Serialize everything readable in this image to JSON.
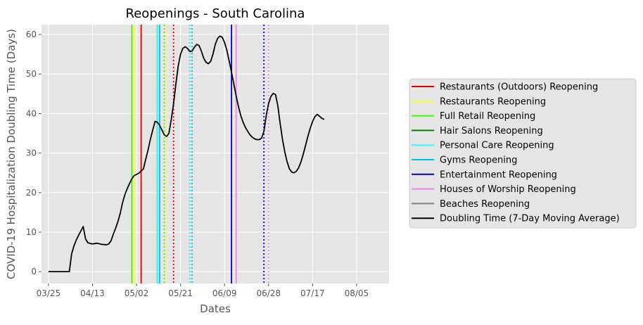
{
  "chart_data": {
    "type": "line",
    "title": "Reopenings - South Carolina",
    "xlabel": "Dates",
    "ylabel": "COVID-19 Hospitalization Doubling Time (Days)",
    "x_ticks": [
      "03/25",
      "04/13",
      "05/02",
      "05/21",
      "06/09",
      "06/28",
      "07/17",
      "08/05"
    ],
    "y_ticks": [
      0,
      10,
      20,
      30,
      40,
      50,
      60
    ],
    "xlim": [
      "03/22",
      "08/19"
    ],
    "ylim": [
      -3,
      62.5
    ],
    "grid": true,
    "legend_position": "right-outside",
    "series": [
      {
        "name": "Doubling Time (7-Day Moving Average)",
        "color": "#000000",
        "points": [
          [
            "03/25",
            0
          ],
          [
            "03/27",
            0
          ],
          [
            "03/29",
            0
          ],
          [
            "03/31",
            0
          ],
          [
            "04/02",
            0
          ],
          [
            "04/03",
            0
          ],
          [
            "04/04",
            4.5
          ],
          [
            "04/05",
            6.5
          ],
          [
            "04/06",
            8
          ],
          [
            "04/07",
            9.2
          ],
          [
            "04/08",
            10.3
          ],
          [
            "04/09",
            11.4
          ],
          [
            "04/10",
            8.3
          ],
          [
            "04/11",
            7.3
          ],
          [
            "04/13",
            7
          ],
          [
            "04/15",
            7.2
          ],
          [
            "04/17",
            6.9
          ],
          [
            "04/19",
            6.8
          ],
          [
            "04/20",
            7
          ],
          [
            "04/21",
            7.8
          ],
          [
            "04/22",
            9.5
          ],
          [
            "04/23",
            11
          ],
          [
            "04/24",
            12.7
          ],
          [
            "04/25",
            14.8
          ],
          [
            "04/26",
            17.5
          ],
          [
            "04/27",
            19.5
          ],
          [
            "04/28",
            21
          ],
          [
            "04/29",
            22.3
          ],
          [
            "04/30",
            23.5
          ],
          [
            "05/01",
            24.3
          ],
          [
            "05/03",
            24.9
          ],
          [
            "05/05",
            26
          ],
          [
            "05/06",
            28.5
          ],
          [
            "05/07",
            30.8
          ],
          [
            "05/08",
            33.5
          ],
          [
            "05/09",
            35.8
          ],
          [
            "05/10",
            38
          ],
          [
            "05/11",
            37.8
          ],
          [
            "05/12",
            37
          ],
          [
            "05/13",
            35.8
          ],
          [
            "05/14",
            34.6
          ],
          [
            "05/15",
            34.2
          ],
          [
            "05/16",
            35
          ],
          [
            "05/17",
            38.5
          ],
          [
            "05/18",
            42.5
          ],
          [
            "05/19",
            47.5
          ],
          [
            "05/20",
            52
          ],
          [
            "05/21",
            55
          ],
          [
            "05/22",
            56.5
          ],
          [
            "05/23",
            56.9
          ],
          [
            "05/24",
            56.5
          ],
          [
            "05/25",
            55.7
          ],
          [
            "05/26",
            55.8
          ],
          [
            "05/27",
            56.8
          ],
          [
            "05/28",
            57.5
          ],
          [
            "05/29",
            57.2
          ],
          [
            "05/30",
            55.8
          ],
          [
            "05/31",
            54
          ],
          [
            "06/01",
            53
          ],
          [
            "06/02",
            52.6
          ],
          [
            "06/03",
            53.2
          ],
          [
            "06/04",
            55
          ],
          [
            "06/05",
            57.5
          ],
          [
            "06/06",
            59
          ],
          [
            "06/07",
            59.6
          ],
          [
            "06/08",
            59.3
          ],
          [
            "06/09",
            58
          ],
          [
            "06/10",
            56
          ],
          [
            "06/11",
            53.3
          ],
          [
            "06/12",
            50.5
          ],
          [
            "06/13",
            47.5
          ],
          [
            "06/14",
            44.5
          ],
          [
            "06/15",
            41.8
          ],
          [
            "06/16",
            39.5
          ],
          [
            "06/17",
            37.8
          ],
          [
            "06/18",
            36.5
          ],
          [
            "06/19",
            35.5
          ],
          [
            "06/20",
            34.6
          ],
          [
            "06/21",
            34
          ],
          [
            "06/22",
            33.6
          ],
          [
            "06/23",
            33.4
          ],
          [
            "06/24",
            33.4
          ],
          [
            "06/25",
            33.8
          ],
          [
            "06/26",
            35.5
          ],
          [
            "06/27",
            39.5
          ],
          [
            "06/28",
            42.5
          ],
          [
            "06/29",
            44.3
          ],
          [
            "06/30",
            45.1
          ],
          [
            "07/01",
            44.8
          ],
          [
            "07/02",
            42
          ],
          [
            "07/03",
            37.5
          ],
          [
            "07/04",
            33.5
          ],
          [
            "07/05",
            30.3
          ],
          [
            "07/06",
            27.8
          ],
          [
            "07/07",
            26
          ],
          [
            "07/08",
            25.2
          ],
          [
            "07/09",
            25
          ],
          [
            "07/10",
            25.4
          ],
          [
            "07/11",
            26.3
          ],
          [
            "07/12",
            27.8
          ],
          [
            "07/13",
            29.8
          ],
          [
            "07/14",
            32
          ],
          [
            "07/15",
            34.3
          ],
          [
            "07/16",
            36.3
          ],
          [
            "07/17",
            38
          ],
          [
            "07/18",
            39.2
          ],
          [
            "07/19",
            39.8
          ],
          [
            "07/20",
            39.3
          ],
          [
            "07/21",
            38.8
          ],
          [
            "07/22",
            38.5
          ]
        ]
      }
    ],
    "reopenings": [
      {
        "name": "Restaurants (Outdoors) Reopening",
        "color": "#e00000",
        "date": "05/04",
        "second_date": "05/18"
      },
      {
        "name": "Restaurants Reopening",
        "color": "#ffff33",
        "date": "05/01",
        "second_date": "05/15"
      },
      {
        "name": "Full Retail Reopening",
        "color": "#33ff00",
        "date": "04/30",
        "second_date": "05/14"
      },
      {
        "name": "Hair Salons Reopening",
        "color": "#008000",
        "date": "05/11",
        "second_date": "05/25"
      },
      {
        "name": "Personal Care Reopening",
        "color": "#33ffff",
        "date": "05/11",
        "second_date": "05/25"
      },
      {
        "name": "Gyms Reopening",
        "color": "#00bfff",
        "date": "05/12",
        "second_date": "05/26"
      },
      {
        "name": "Entertainment Reopening",
        "color": "#0000cc",
        "date": "06/12",
        "second_date": "06/26"
      },
      {
        "name": "Houses of Worship Reopening",
        "color": "#ee82ee",
        "date": "06/14",
        "second_date": "06/28"
      },
      {
        "name": "Beaches Reopening",
        "color": "#808080",
        "date": "",
        "second_date": ""
      }
    ],
    "reopening_line_style": {
      "solid": "reopening date",
      "dotted": "reopening date + 14 days"
    }
  }
}
